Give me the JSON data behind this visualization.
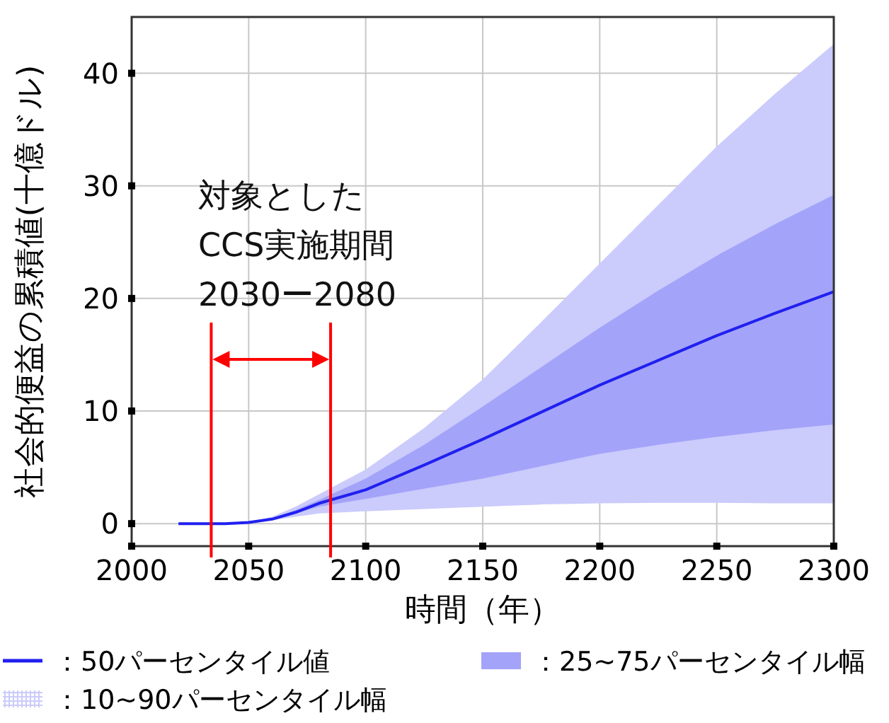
{
  "chart_data": {
    "type": "line",
    "xlabel": "時間（年）",
    "ylabel": "社会的便益の累積値(十億ドル)",
    "x": [
      2020,
      2040,
      2050,
      2060,
      2070,
      2080,
      2100,
      2125,
      2150,
      2175,
      2200,
      2225,
      2250,
      2275,
      2300
    ],
    "series": [
      {
        "name": "：50パーセンタイル値",
        "type": "line",
        "color": "#2020f0",
        "values": [
          0,
          0,
          0.1,
          0.4,
          1.0,
          1.8,
          3.0,
          5.2,
          7.5,
          9.9,
          12.3,
          14.5,
          16.7,
          18.7,
          20.6
        ]
      },
      {
        "name": "：25~75パーセンタイル幅",
        "type": "area",
        "color": "#a3a3fa",
        "values": [
          null,
          null,
          null,
          null,
          null,
          null,
          null,
          null,
          null,
          null,
          null,
          null,
          null,
          null,
          null
        ],
        "lower": [
          0,
          0,
          0.1,
          0.4,
          0.9,
          1.5,
          2.2,
          3.1,
          4.0,
          5.1,
          6.2,
          7.0,
          7.7,
          8.3,
          8.8
        ],
        "upper": [
          0,
          0,
          0.1,
          0.5,
          1.2,
          2.1,
          4.0,
          7.0,
          10.4,
          13.9,
          17.4,
          20.7,
          23.8,
          26.6,
          29.2
        ]
      },
      {
        "name": "：10~90パーセンタイル幅",
        "type": "area",
        "color": "#cbcbfc",
        "values": [
          null,
          null,
          null,
          null,
          null,
          null,
          null,
          null,
          null,
          null,
          null,
          null,
          null,
          null,
          null
        ],
        "lower": [
          0,
          0,
          0.1,
          0.3,
          0.6,
          0.9,
          1.1,
          1.3,
          1.5,
          1.7,
          1.8,
          1.85,
          1.85,
          1.8,
          1.8
        ],
        "upper": [
          0,
          0,
          0.1,
          0.6,
          1.5,
          2.6,
          4.8,
          8.5,
          12.8,
          17.9,
          23.1,
          28.3,
          33.5,
          38.2,
          42.6
        ]
      }
    ],
    "xlim": [
      2000,
      2300
    ],
    "xticks": [
      2000,
      2050,
      2100,
      2150,
      2200,
      2250,
      2300
    ],
    "ylim": [
      -2,
      45
    ],
    "yticks": [
      0,
      10,
      20,
      30,
      40
    ],
    "grid": true,
    "legend": "bottom",
    "ref_lines": [
      {
        "axis": "x",
        "value": 2034,
        "color": "#ff0000"
      },
      {
        "axis": "x",
        "value": 2085,
        "color": "#ff0000"
      }
    ],
    "annotations": [
      "対象とした\nCCS実施期間\n2030ー2080"
    ]
  }
}
